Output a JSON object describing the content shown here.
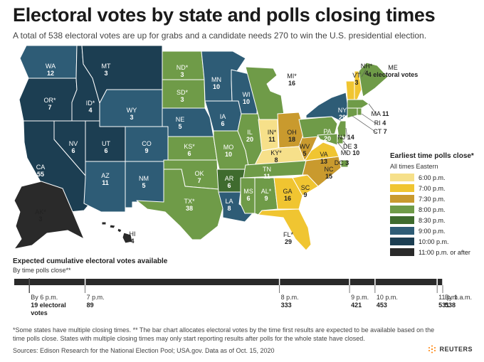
{
  "title": "Electoral votes by state and polls closing times",
  "subtitle": "A total of 538 electoral votes are up for grabs and a candidate needs 270 to win the U.S. presidential election.",
  "legend": {
    "title": "Earliest time polls close*",
    "subtitle": "All times Eastern",
    "items": [
      {
        "label": "6:00 p.m.",
        "color": "#f6e08a"
      },
      {
        "label": "7:00 p.m.",
        "color": "#f0c531"
      },
      {
        "label": "7:30 p.m.",
        "color": "#c99a2e"
      },
      {
        "label": "8:00 p.m.",
        "color": "#6f9b48"
      },
      {
        "label": "8:30 p.m.",
        "color": "#3f6b2e"
      },
      {
        "label": "9:00 p.m.",
        "color": "#2e5c76"
      },
      {
        "label": "10:00 p.m.",
        "color": "#1c3e52"
      },
      {
        "label": "11:00 p.m. or after",
        "color": "#2a2a2a"
      }
    ]
  },
  "states": [
    {
      "abbr": "WA",
      "votes": "12",
      "color": "#2e5c76"
    },
    {
      "abbr": "OR*",
      "votes": "7",
      "color": "#1c3e52"
    },
    {
      "abbr": "CA",
      "votes": "55",
      "color": "#1c3e52"
    },
    {
      "abbr": "NV",
      "votes": "6",
      "color": "#1c3e52"
    },
    {
      "abbr": "ID*",
      "votes": "4",
      "color": "#1c3e52"
    },
    {
      "abbr": "MT",
      "votes": "3",
      "color": "#1c3e52"
    },
    {
      "abbr": "WY",
      "votes": "3",
      "color": "#2e5c76"
    },
    {
      "abbr": "UT",
      "votes": "6",
      "color": "#1c3e52"
    },
    {
      "abbr": "AZ",
      "votes": "11",
      "color": "#2e5c76"
    },
    {
      "abbr": "CO",
      "votes": "9",
      "color": "#2e5c76"
    },
    {
      "abbr": "NM",
      "votes": "5",
      "color": "#2e5c76"
    },
    {
      "abbr": "ND*",
      "votes": "3",
      "color": "#6f9b48"
    },
    {
      "abbr": "SD*",
      "votes": "3",
      "color": "#6f9b48"
    },
    {
      "abbr": "NE",
      "votes": "5",
      "color": "#2e5c76"
    },
    {
      "abbr": "KS*",
      "votes": "6",
      "color": "#6f9b48"
    },
    {
      "abbr": "OK",
      "votes": "7",
      "color": "#6f9b48"
    },
    {
      "abbr": "TX*",
      "votes": "38",
      "color": "#6f9b48"
    },
    {
      "abbr": "MN",
      "votes": "10",
      "color": "#2e5c76"
    },
    {
      "abbr": "IA",
      "votes": "6",
      "color": "#2e5c76"
    },
    {
      "abbr": "MO",
      "votes": "10",
      "color": "#6f9b48"
    },
    {
      "abbr": "AR",
      "votes": "6",
      "color": "#3f6b2e"
    },
    {
      "abbr": "LA",
      "votes": "8",
      "color": "#2e5c76"
    },
    {
      "abbr": "WI",
      "votes": "10",
      "color": "#2e5c76"
    },
    {
      "abbr": "IL",
      "votes": "20",
      "color": "#6f9b48"
    },
    {
      "abbr": "MI*",
      "votes": "16",
      "color": "#6f9b48"
    },
    {
      "abbr": "IN*",
      "votes": "11",
      "color": "#f6e08a"
    },
    {
      "abbr": "OH",
      "votes": "18",
      "color": "#c99a2e"
    },
    {
      "abbr": "KY*",
      "votes": "8",
      "color": "#f6e08a"
    },
    {
      "abbr": "TN",
      "votes": "11",
      "color": "#6f9b48"
    },
    {
      "abbr": "MS",
      "votes": "6",
      "color": "#6f9b48"
    },
    {
      "abbr": "AL*",
      "votes": "9",
      "color": "#6f9b48"
    },
    {
      "abbr": "GA",
      "votes": "16",
      "color": "#f0c531"
    },
    {
      "abbr": "FL*",
      "votes": "29",
      "color": "#f0c531"
    },
    {
      "abbr": "SC",
      "votes": "9",
      "color": "#f0c531"
    },
    {
      "abbr": "NC",
      "votes": "15",
      "color": "#c99a2e"
    },
    {
      "abbr": "VA",
      "votes": "13",
      "color": "#f0c531"
    },
    {
      "abbr": "WV",
      "votes": "5",
      "color": "#c99a2e"
    },
    {
      "abbr": "PA",
      "votes": "20",
      "color": "#6f9b48"
    },
    {
      "abbr": "NY",
      "votes": "29",
      "color": "#2e5c76"
    },
    {
      "abbr": "VT",
      "votes": "3",
      "color": "#f0c531"
    },
    {
      "abbr": "NH*",
      "votes": "4",
      "color": "#f0c531"
    },
    {
      "abbr": "ME",
      "votes": "4 electoral votes",
      "color": "#6f9b48"
    },
    {
      "abbr": "MA",
      "votes": "11",
      "color": "#6f9b48"
    },
    {
      "abbr": "RI",
      "votes": "4",
      "color": "#6f9b48"
    },
    {
      "abbr": "CT",
      "votes": "7",
      "color": "#6f9b48"
    },
    {
      "abbr": "NJ",
      "votes": "14",
      "color": "#6f9b48"
    },
    {
      "abbr": "DE",
      "votes": "3",
      "color": "#6f9b48"
    },
    {
      "abbr": "MD",
      "votes": "10",
      "color": "#6f9b48"
    },
    {
      "abbr": "DC",
      "votes": "3",
      "color": "#6f9b48"
    },
    {
      "abbr": "AK*",
      "votes": "3",
      "color": "#2a2a2a"
    },
    {
      "abbr": "HI",
      "votes": "4",
      "color": "#2a2a2a"
    }
  ],
  "bar": {
    "title": "Expected cumulative electoral votes available",
    "subtitle": "By time polls close**",
    "total": 538,
    "ticks": [
      {
        "time": "By 6 p.m.",
        "votes": 19,
        "value_text": "19 electoral votes"
      },
      {
        "time": "7 p.m.",
        "votes": 89,
        "value_text": "89"
      },
      {
        "time": "8 p.m.",
        "votes": 333,
        "value_text": "333"
      },
      {
        "time": "9 p.m.",
        "votes": 421,
        "value_text": "421"
      },
      {
        "time": "10 p.m.",
        "votes": 453,
        "value_text": "453"
      },
      {
        "time": "11 p.m.",
        "votes": 531,
        "value_text": "531"
      },
      {
        "time": "By 1 a.m.",
        "votes": 538,
        "value_text": "538"
      }
    ],
    "color": "#2a2a2a"
  },
  "footnote": "*Some states have multiple closing times. ** The bar chart allocates electoral votes by the time first results are expected to be available based on the time polls close. States with multiple closing times may only start reporting results after polls for the whole state have closed.",
  "source": "Sources: Edison Research for the National Election Pool; USA.gov. Data as of Oct. 15, 2020",
  "brand": "REUTERS"
}
